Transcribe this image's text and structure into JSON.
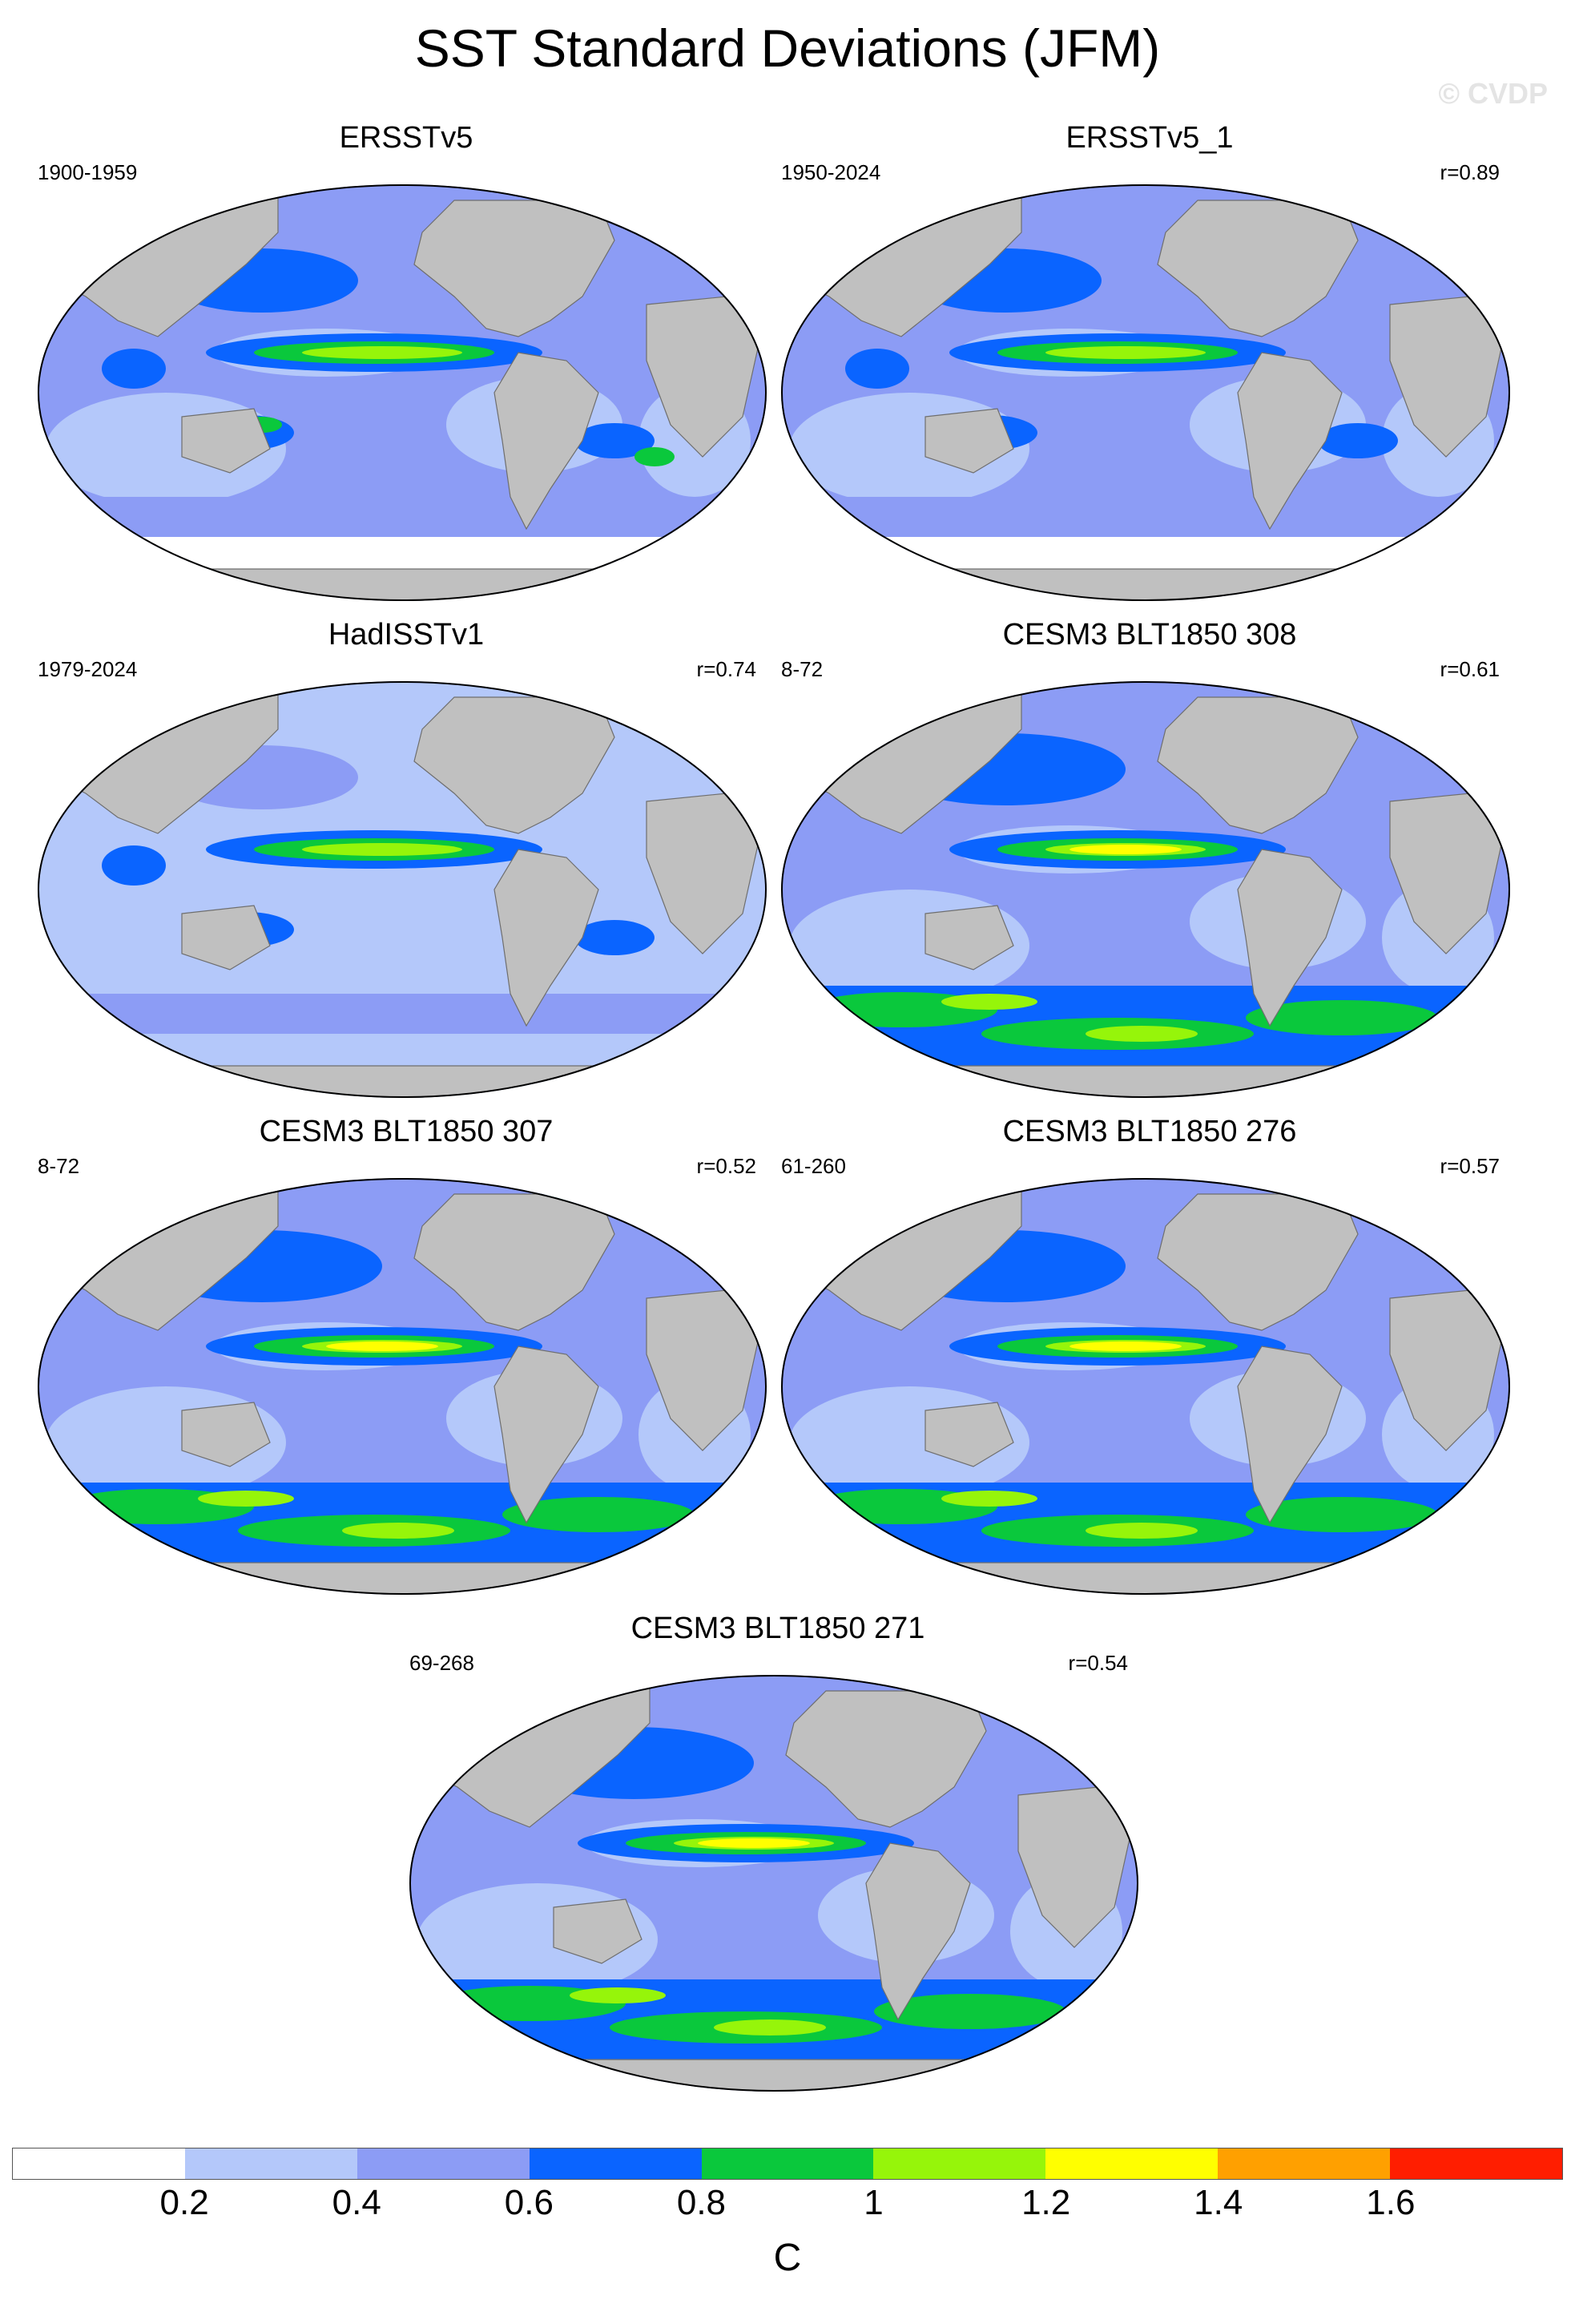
{
  "title": "SST Standard Deviations (JFM)",
  "watermark": "© CVDP",
  "panels": [
    {
      "name": "ERSSTv5",
      "period": "1900-1959",
      "r": "",
      "variant": "obs_a"
    },
    {
      "name": "ERSSTv5_1",
      "period": "1950-2024",
      "r": "r=0.89",
      "variant": "obs_b"
    },
    {
      "name": "HadISSTv1",
      "period": "1979-2024",
      "r": "r=0.74",
      "variant": "obs_c"
    },
    {
      "name": "CESM3 BLT1850 308",
      "period": "8-72",
      "r": "r=0.61",
      "variant": "model"
    },
    {
      "name": "CESM3 BLT1850 307",
      "period": "8-72",
      "r": "r=0.52",
      "variant": "model"
    },
    {
      "name": "CESM3 BLT1850 276",
      "period": "61-260",
      "r": "r=0.57",
      "variant": "model"
    },
    {
      "name": "CESM3 BLT1850 271",
      "period": "69-268",
      "r": "r=0.54",
      "variant": "model"
    }
  ],
  "colorbar": {
    "unit": "C",
    "ticks": [
      "0.2",
      "0.4",
      "0.6",
      "0.8",
      "1",
      "1.2",
      "1.4",
      "1.6"
    ],
    "colors": [
      "#ffffff",
      "#b4c8fa",
      "#8c9cf5",
      "#0a64ff",
      "#0ac83c",
      "#96f50a",
      "#ffff00",
      "#ffa000",
      "#ff1e00"
    ]
  },
  "colors": {
    "land": "#c0c0c0",
    "ocean_base": "#8c9cf5"
  }
}
